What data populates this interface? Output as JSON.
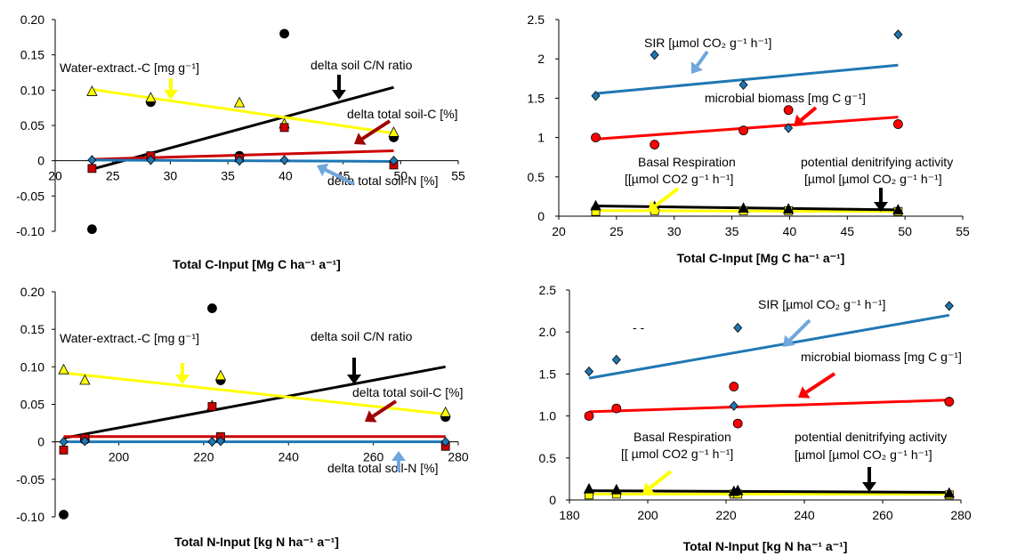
{
  "chart_data": [
    {
      "type": "scatter",
      "xlabel": "Total C-Input [Mg C ha⁻¹ a⁻¹]",
      "xlim": [
        20,
        55
      ],
      "ylim": [
        -0.1,
        0.2
      ],
      "xticks": [
        20,
        25,
        30,
        35,
        40,
        45,
        50,
        55
      ],
      "yticks": [
        -0.1,
        -0.05,
        0,
        0.05,
        0.1,
        0.15,
        0.2
      ],
      "ytick_labels": [
        "-0.10",
        "-0.05",
        "0",
        "0.05",
        "0.10",
        "0.15",
        "0.20"
      ],
      "series": [
        {
          "key": "cn",
          "marker": "circle",
          "color": "#000000",
          "points": [
            [
              23.2,
              -0.097
            ],
            [
              28.3,
              0.083
            ],
            [
              36.0,
              0.007
            ],
            [
              39.9,
              0.18
            ],
            [
              49.4,
              0.033
            ]
          ],
          "trend": [
            [
              23.2,
              -0.012
            ],
            [
              49.4,
              0.104
            ]
          ]
        },
        {
          "key": "wec",
          "marker": "triangle",
          "color": "#ffff00",
          "points": [
            [
              23.2,
              0.098
            ],
            [
              28.3,
              0.089
            ],
            [
              36.0,
              0.082
            ],
            [
              39.9,
              0.052
            ],
            [
              49.4,
              0.04
            ]
          ],
          "trend": [
            [
              23.2,
              0.101
            ],
            [
              49.4,
              0.039
            ]
          ]
        },
        {
          "key": "tc",
          "marker": "square",
          "color": "#cc0000",
          "points": [
            [
              23.2,
              -0.011
            ],
            [
              28.3,
              0.007
            ],
            [
              36.0,
              0.004
            ],
            [
              39.9,
              0.047
            ],
            [
              49.4,
              -0.006
            ]
          ],
          "trend": [
            [
              23.2,
              0.002
            ],
            [
              49.4,
              0.014
            ]
          ]
        },
        {
          "key": "tn",
          "marker": "diamond",
          "color": "#1f77b4",
          "points": [
            [
              23.2,
              0.001
            ],
            [
              28.3,
              0.001
            ],
            [
              36.0,
              0.0
            ],
            [
              39.9,
              0.001
            ],
            [
              49.4,
              0.0
            ]
          ],
          "trend": [
            [
              23.2,
              0.001
            ],
            [
              49.4,
              -0.001
            ]
          ]
        }
      ],
      "annotations": [
        {
          "key": "wec",
          "text": "Water-extract.-C [mg g⁻¹]"
        },
        {
          "key": "cn",
          "text": "delta soil C/N ratio"
        },
        {
          "key": "tc",
          "text": "delta total soil-C [%]"
        },
        {
          "key": "tn",
          "text": "delta total soil-N [%]"
        }
      ]
    },
    {
      "type": "scatter",
      "xlabel": "Total C-Input [Mg C ha⁻¹ a⁻¹]",
      "xlim": [
        20,
        55
      ],
      "ylim": [
        0,
        2.5
      ],
      "xticks": [
        20,
        25,
        30,
        35,
        40,
        45,
        50,
        55
      ],
      "yticks": [
        0,
        0.5,
        1,
        1.5,
        2,
        2.5
      ],
      "ytick_labels": [
        "0",
        "0.5",
        "1",
        "1.5",
        "2",
        "2.5"
      ],
      "series": [
        {
          "key": "sir",
          "marker": "diamond",
          "color": "#1f77b4",
          "points": [
            [
              23.2,
              1.53
            ],
            [
              28.3,
              2.05
            ],
            [
              36.0,
              1.67
            ],
            [
              39.9,
              1.12
            ],
            [
              49.4,
              2.31
            ]
          ],
          "trend": [
            [
              23.2,
              1.56
            ],
            [
              49.4,
              1.92
            ]
          ]
        },
        {
          "key": "mb",
          "marker": "circle",
          "color": "#ff0000",
          "points": [
            [
              23.2,
              1.0
            ],
            [
              28.3,
              0.91
            ],
            [
              36.0,
              1.09
            ],
            [
              39.9,
              1.35
            ],
            [
              49.4,
              1.17
            ]
          ],
          "trend": [
            [
              23.2,
              0.98
            ],
            [
              49.4,
              1.26
            ]
          ]
        },
        {
          "key": "br",
          "marker": "square",
          "color": "#ffff00",
          "points": [
            [
              23.2,
              0.06
            ],
            [
              28.3,
              0.07
            ],
            [
              36.0,
              0.07
            ],
            [
              39.9,
              0.07
            ],
            [
              49.4,
              0.06
            ]
          ],
          "trend": [
            [
              23.2,
              0.07
            ],
            [
              49.4,
              0.06
            ]
          ]
        },
        {
          "key": "pda",
          "marker": "triangle",
          "color": "#000000",
          "points": [
            [
              23.2,
              0.13
            ],
            [
              28.3,
              0.12
            ],
            [
              36.0,
              0.1
            ],
            [
              39.9,
              0.09
            ],
            [
              49.4,
              0.08
            ]
          ],
          "trend": [
            [
              23.2,
              0.13
            ],
            [
              49.4,
              0.08
            ]
          ]
        }
      ],
      "annotations": [
        {
          "key": "sir",
          "text": "SIR  [µmol CO₂ g⁻¹ h⁻¹]"
        },
        {
          "key": "mb",
          "text": "microbial biomass [mg C g⁻¹]"
        },
        {
          "key": "br1",
          "text": "Basal Respiration"
        },
        {
          "key": "br2",
          "text": "[[µmol CO2 g⁻¹ h⁻¹]"
        },
        {
          "key": "pda1",
          "text": "potential denitrifying activity"
        },
        {
          "key": "pda2",
          "text": "[µmol [µmol CO₂ g⁻¹ h⁻¹]"
        }
      ]
    },
    {
      "type": "scatter",
      "xlabel": "Total N-Input [kg N ha⁻¹ a⁻¹]",
      "xlim": [
        185,
        280
      ],
      "ylim": [
        -0.1,
        0.2
      ],
      "xticks": [
        200,
        220,
        240,
        260,
        280
      ],
      "yticks": [
        -0.1,
        -0.05,
        0,
        0.05,
        0.1,
        0.15,
        0.2
      ],
      "ytick_labels": [
        "-0.10",
        "-0.05",
        "0",
        "0.05",
        "0.10",
        "0.15",
        "0.20"
      ],
      "series": [
        {
          "key": "cn",
          "marker": "circle",
          "color": "#000000",
          "points": [
            [
              187,
              -0.097
            ],
            [
              192,
              0.003
            ],
            [
              222,
              0.178
            ],
            [
              224,
              0.082
            ],
            [
              277,
              0.033
            ]
          ],
          "trend": [
            [
              187,
              0.005
            ],
            [
              277,
              0.1
            ]
          ]
        },
        {
          "key": "wec",
          "marker": "triangle",
          "color": "#ffff00",
          "points": [
            [
              187,
              0.096
            ],
            [
              192,
              0.082
            ],
            [
              222,
              0.048
            ],
            [
              224,
              0.088
            ],
            [
              277,
              0.039
            ]
          ],
          "trend": [
            [
              187,
              0.092
            ],
            [
              277,
              0.037
            ]
          ]
        },
        {
          "key": "tc",
          "marker": "square",
          "color": "#cc0000",
          "points": [
            [
              187,
              -0.011
            ],
            [
              192,
              0.005
            ],
            [
              222,
              0.047
            ],
            [
              224,
              0.007
            ],
            [
              277,
              -0.006
            ]
          ],
          "trend": [
            [
              187,
              0.007
            ],
            [
              277,
              0.007
            ]
          ]
        },
        {
          "key": "tn",
          "marker": "diamond",
          "color": "#1f77b4",
          "points": [
            [
              187,
              0.0
            ],
            [
              192,
              0.001
            ],
            [
              222,
              0.0
            ],
            [
              224,
              0.001
            ],
            [
              277,
              0.0
            ]
          ],
          "trend": [
            [
              187,
              0.0
            ],
            [
              277,
              0.0
            ]
          ]
        }
      ],
      "annotations": [
        {
          "key": "wec",
          "text": "Water-extract.-C [mg g⁻¹]"
        },
        {
          "key": "cn",
          "text": "delta soil C/N ratio"
        },
        {
          "key": "tc",
          "text": "delta total soil-C [%]"
        },
        {
          "key": "tn",
          "text": "delta total soil-N [%]"
        }
      ]
    },
    {
      "type": "scatter",
      "xlabel": "Total N-Input [kg N ha⁻¹ a⁻¹]",
      "xlim": [
        180,
        280
      ],
      "ylim": [
        0,
        2.5
      ],
      "xticks": [
        180,
        200,
        220,
        240,
        260,
        280
      ],
      "yticks": [
        0,
        0.5,
        1.0,
        1.5,
        2.0,
        2.5
      ],
      "ytick_labels": [
        "0",
        "0.5",
        "1.0",
        "1.5",
        "2.0",
        "2.5"
      ],
      "series": [
        {
          "key": "sir",
          "marker": "diamond",
          "color": "#1f77b4",
          "points": [
            [
              185,
              1.53
            ],
            [
              192,
              1.67
            ],
            [
              222,
              1.12
            ],
            [
              223,
              2.05
            ],
            [
              277,
              2.31
            ]
          ],
          "trend": [
            [
              185,
              1.45
            ],
            [
              277,
              2.2
            ]
          ]
        },
        {
          "key": "mb",
          "marker": "circle",
          "color": "#ff0000",
          "points": [
            [
              185,
              1.0
            ],
            [
              192,
              1.09
            ],
            [
              222,
              1.35
            ],
            [
              223,
              0.91
            ],
            [
              277,
              1.17
            ]
          ],
          "trend": [
            [
              185,
              1.05
            ],
            [
              277,
              1.19
            ]
          ]
        },
        {
          "key": "br",
          "marker": "square",
          "color": "#ffff00",
          "points": [
            [
              185,
              0.06
            ],
            [
              192,
              0.07
            ],
            [
              222,
              0.07
            ],
            [
              223,
              0.07
            ],
            [
              277,
              0.06
            ]
          ],
          "trend": [
            [
              185,
              0.07
            ],
            [
              277,
              0.07
            ]
          ]
        },
        {
          "key": "pda",
          "marker": "triangle",
          "color": "#000000",
          "points": [
            [
              185,
              0.13
            ],
            [
              192,
              0.12
            ],
            [
              222,
              0.1
            ],
            [
              223,
              0.11
            ],
            [
              277,
              0.08
            ]
          ],
          "trend": [
            [
              185,
              0.11
            ],
            [
              277,
              0.09
            ]
          ]
        }
      ],
      "annotations": [
        {
          "key": "dash",
          "text": "-     -"
        },
        {
          "key": "sir",
          "text": "SIR  [µmol CO₂ g⁻¹ h⁻¹]"
        },
        {
          "key": "mb",
          "text": "microbial biomass [mg C g⁻¹]"
        },
        {
          "key": "br1",
          "text": "Basal Respiration"
        },
        {
          "key": "br2",
          "text": "[[ µmol CO2 g⁻¹ h⁻¹]"
        },
        {
          "key": "pda1",
          "text": "potential denitrifying activity"
        },
        {
          "key": "pda2",
          "text": "[µmol [µmol CO₂ g⁻¹ h⁻¹]"
        }
      ]
    }
  ],
  "colors": {
    "blue": "#1f77b4",
    "red": "#ff0000",
    "darkred": "#a00000",
    "yellow": "#ffff00",
    "black": "#000000",
    "arrow_blue": "#6fa6dc"
  }
}
